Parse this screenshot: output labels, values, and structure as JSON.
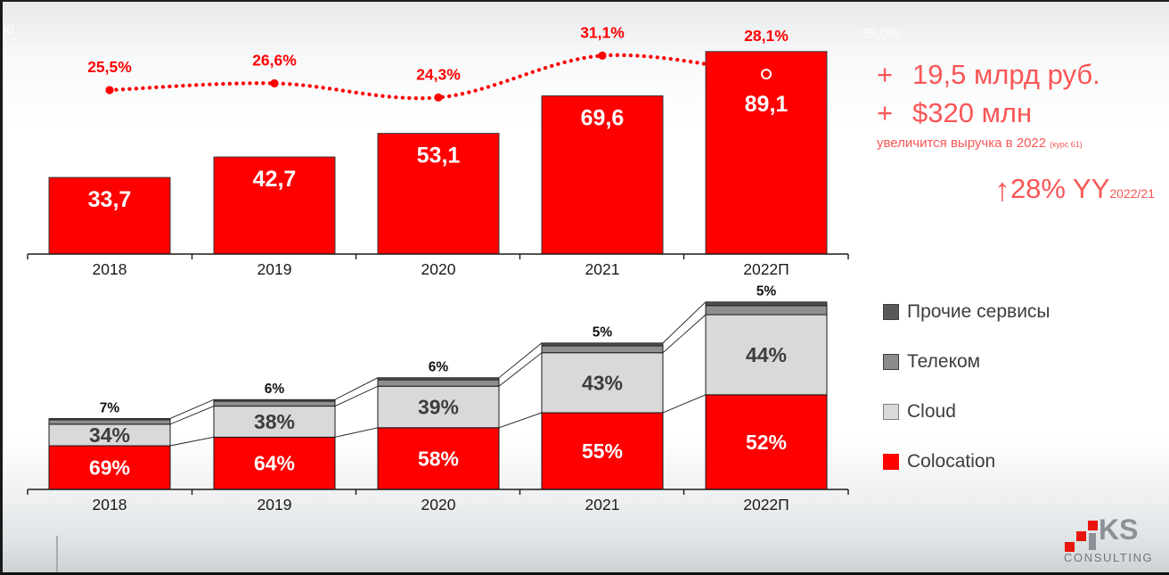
{
  "faint": {
    "left_label": "00",
    "right_label": "35,0%"
  },
  "chart_data": [
    {
      "type": "bar",
      "title": "",
      "categories": [
        "2018",
        "2019",
        "2020",
        "2021",
        "2022П"
      ],
      "bar_series": {
        "name": "revenue",
        "color": "#fe0000",
        "values": [
          33.7,
          42.7,
          53.1,
          69.6,
          89.1
        ],
        "labels": [
          "33,7",
          "42,7",
          "53,1",
          "69,6",
          "89,1"
        ]
      },
      "line_series": {
        "name": "growth-yoy-percent",
        "style": "dotted",
        "color": "#fe0000",
        "values": [
          25.5,
          26.6,
          24.3,
          31.1,
          28.1
        ],
        "labels": [
          "25,5%",
          "26,6%",
          "24,3%",
          "31,1%",
          "28,1%"
        ],
        "last_point_marker": "hollow-white-circle"
      },
      "ylim": [
        0,
        100
      ],
      "secondary_ylim": [
        0,
        35
      ],
      "grid": false
    },
    {
      "type": "stacked-bar",
      "title": "",
      "categories": [
        "2018",
        "2019",
        "2020",
        "2021",
        "2022П"
      ],
      "bar_heights_proportional_to": [
        33.7,
        42.7,
        53.1,
        69.6,
        89.1
      ],
      "series": [
        {
          "name": "Colocation",
          "color": "#fe0000",
          "label_color": "#ffffff",
          "values": [
            69,
            64,
            58,
            55,
            52
          ],
          "labels": [
            "69%",
            "64%",
            "58%",
            "55%",
            "52%"
          ]
        },
        {
          "name": "Cloud",
          "color": "#d9d9d9",
          "label_color": "#3d3d3d",
          "values": [
            34,
            38,
            39,
            43,
            44
          ],
          "labels": [
            "34%",
            "38%",
            "39%",
            "43%",
            "44%"
          ]
        },
        {
          "name": "Телеком",
          "color": "#8e8e8e",
          "label_color": "#111111",
          "values": [
            7,
            6,
            6,
            5,
            5
          ],
          "labels": [
            "7%",
            "6%",
            "6%",
            "5%",
            "5%"
          ],
          "labels_above_bar": true
        },
        {
          "name": "Прочие сервисы",
          "color": "#4d4d4d",
          "values": null,
          "note": "thin unlabeled strip at top of each bar"
        }
      ],
      "legend_position": "right",
      "grid": false
    }
  ],
  "highlights": {
    "plus": "+",
    "line1": "19,5 млрд руб.",
    "line2": "$320 млн",
    "caption": "увеличится выручка в 2022",
    "caption_note": "(курс 61)",
    "growth_arrow": "↑",
    "growth_value": "28% YY",
    "growth_sub": "2022/21",
    "accent_color": "#fa5656"
  },
  "legend": {
    "items": [
      {
        "label": "Прочие сервисы",
        "color": "#595959",
        "border": "#3f3f3f"
      },
      {
        "label": "Телеком",
        "color": "#8c8c8c",
        "border": "#3f3f3f"
      },
      {
        "label": "Cloud",
        "color": "#d9d9d9",
        "border": "#7f7f7f"
      },
      {
        "label": "Colocation",
        "color": "#fe0000",
        "border": "#fe0000"
      }
    ]
  },
  "logo": {
    "brand_ks": "KS",
    "subtext": "CONSULTING"
  }
}
